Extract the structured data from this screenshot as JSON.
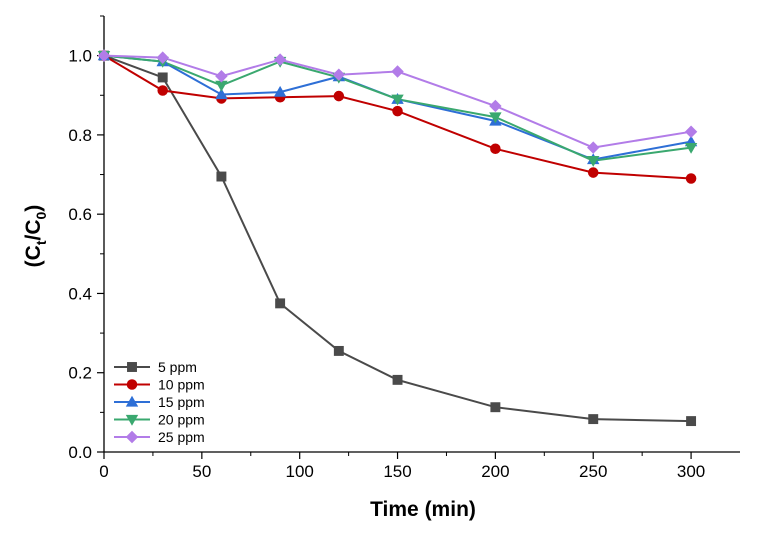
{
  "chart_data": {
    "type": "line",
    "title": "",
    "xlabel": "Time (min)",
    "ylabel_parts": {
      "open": "(C",
      "sub1": "t",
      "slash": "/C",
      "sub2": "0",
      "close": ")"
    },
    "x": [
      0,
      30,
      60,
      90,
      120,
      150,
      200,
      250,
      300
    ],
    "xlim": [
      0,
      325
    ],
    "ylim": [
      0.0,
      1.1
    ],
    "xticks": [
      0,
      50,
      100,
      150,
      200,
      250,
      300
    ],
    "yticks": [
      0.0,
      0.2,
      0.4,
      0.6,
      0.8,
      1.0
    ],
    "ytick_labels": [
      "0.0",
      "0.2",
      "0.4",
      "0.6",
      "0.8",
      "1.0"
    ],
    "legend_position": "lower-left",
    "series": [
      {
        "name": "5 ppm",
        "color": "#4a4a4a",
        "marker": "square",
        "values": [
          1.0,
          0.945,
          0.695,
          0.375,
          0.255,
          0.182,
          0.113,
          0.083,
          0.078
        ]
      },
      {
        "name": "10 ppm",
        "color": "#c00000",
        "marker": "circle",
        "values": [
          1.0,
          0.912,
          0.892,
          0.895,
          0.898,
          0.86,
          0.765,
          0.705,
          0.69
        ]
      },
      {
        "name": "15 ppm",
        "color": "#2e6fd6",
        "marker": "triangle-up",
        "values": [
          1.0,
          0.985,
          0.902,
          0.908,
          0.947,
          0.89,
          0.835,
          0.738,
          0.783
        ]
      },
      {
        "name": "20 ppm",
        "color": "#3aa86f",
        "marker": "triangle-down",
        "values": [
          1.0,
          0.985,
          0.925,
          0.985,
          0.945,
          0.89,
          0.845,
          0.735,
          0.768
        ]
      },
      {
        "name": "25 ppm",
        "color": "#b27ce8",
        "marker": "diamond",
        "values": [
          1.0,
          0.995,
          0.948,
          0.99,
          0.952,
          0.96,
          0.873,
          0.768,
          0.808
        ]
      }
    ]
  }
}
